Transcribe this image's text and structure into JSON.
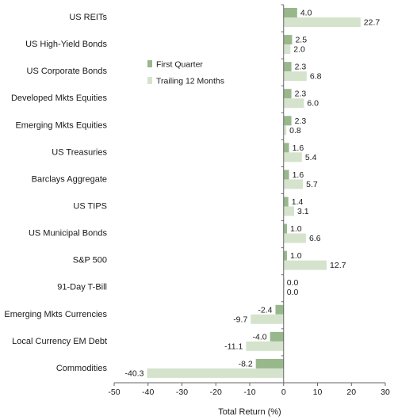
{
  "chart_data": {
    "type": "bar",
    "orientation": "horizontal",
    "categories": [
      "US REITs",
      "US High-Yield Bonds",
      "US Corporate Bonds",
      "Developed Mkts Equities",
      "Emerging Mkts Equities",
      "US Treasuries",
      "Barclays Aggregate",
      "US TIPS",
      "US Municipal Bonds",
      "S&P 500",
      "91-Day T-Bill",
      "Emerging Mkts Currencies",
      "Local Currency EM Debt",
      "Commodities"
    ],
    "series": [
      {
        "name": "First Quarter",
        "color": "#98b88c",
        "values": [
          4.0,
          2.5,
          2.3,
          2.3,
          2.3,
          1.6,
          1.6,
          1.4,
          1.0,
          1.0,
          0.0,
          -2.4,
          -4.0,
          -8.2
        ],
        "labels": [
          "4.0",
          "2.5",
          "2.3",
          "2.3",
          "2.3",
          "1.6",
          "1.6",
          "1.4",
          "1.0",
          "1.0",
          "0.0",
          "-2.4",
          "-4.0",
          "-8.2"
        ]
      },
      {
        "name": "Trailing 12 Months",
        "color": "#d5e3cd",
        "values": [
          22.7,
          2.0,
          6.8,
          6.0,
          0.8,
          5.4,
          5.7,
          3.1,
          6.6,
          12.7,
          0.0,
          -9.7,
          -11.1,
          -40.3
        ],
        "labels": [
          "22.7",
          "2.0",
          "6.8",
          "6.0",
          "0.8",
          "5.4",
          "5.7",
          "3.1",
          "6.6",
          "12.7",
          "0.0",
          "-9.7",
          "-11.1",
          "-40.3"
        ]
      }
    ],
    "xlabel": "Total Return (%)",
    "xlim": [
      -50,
      30
    ],
    "xticks": [
      -50,
      -40,
      -30,
      -20,
      -10,
      0,
      10,
      20,
      30
    ],
    "xtick_labels": [
      "-50",
      "-40",
      "-30",
      "-20",
      "-10",
      "0",
      "10",
      "20",
      "30"
    ],
    "grid": false,
    "legend": [
      "First Quarter",
      "Trailing 12 Months"
    ],
    "legend_placement": "upper-left of plot area"
  }
}
